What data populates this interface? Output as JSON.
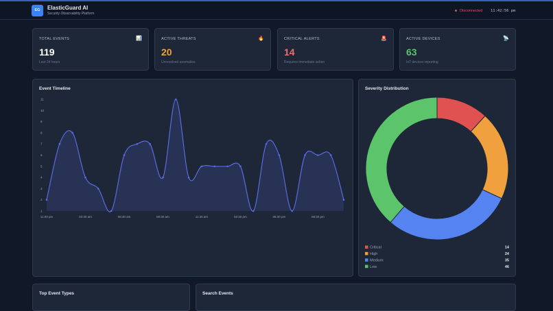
{
  "header": {
    "logo": "EG",
    "title": "ElasticGuard AI",
    "subtitle": "Security Observability Platform",
    "status": "Disconnected",
    "time": "11:42:56 pm"
  },
  "cards": [
    {
      "label": "TOTAL EVENTS",
      "value": 119,
      "note": "Last 24 hours",
      "icon": "📊",
      "color": "#ffffff"
    },
    {
      "label": "ACTIVE THREATS",
      "value": 20,
      "note": "Unresolved anomalies",
      "icon": "🔥",
      "color": "#f0a03c"
    },
    {
      "label": "CRITICAL ALERTS",
      "value": 14,
      "note": "Requires immediate action",
      "icon": "🚨",
      "color": "#e87070"
    },
    {
      "label": "ACTIVE DEVICES",
      "value": 63,
      "note": "IoT devices reporting",
      "icon": "📡",
      "color": "#5cc46a"
    }
  ],
  "chart_data": [
    {
      "type": "line",
      "title": "Event Timeline",
      "color": "#5b6be0",
      "categories": [
        "11:00 pm",
        null,
        null,
        "02:30 am",
        null,
        null,
        "05:30 am",
        null,
        null,
        "08:30 am",
        null,
        null,
        "11:30 am",
        null,
        null,
        "02:30 pm",
        null,
        null,
        "05:30 pm",
        null,
        null,
        "08:30 pm",
        null,
        null
      ],
      "values": [
        2,
        7,
        8,
        4,
        3,
        1,
        6,
        7,
        7,
        4,
        11,
        4,
        5,
        5,
        5,
        5,
        1,
        7,
        6,
        1,
        6,
        6,
        6,
        2
      ],
      "ylim": [
        1,
        11
      ],
      "yticks": [
        1,
        2,
        3,
        4,
        5,
        6,
        7,
        8,
        9,
        10,
        11
      ]
    },
    {
      "type": "donut",
      "title": "Severity Distribution",
      "categories": [
        "Critical",
        "High",
        "Medium",
        "Low"
      ],
      "values": [
        14,
        24,
        35,
        46
      ],
      "colors": [
        "#e05252",
        "#f0a03c",
        "#5584f0",
        "#5cc46a"
      ]
    }
  ],
  "panels": [
    {
      "title": "Top Event Types"
    },
    {
      "title": "Search Events"
    }
  ]
}
